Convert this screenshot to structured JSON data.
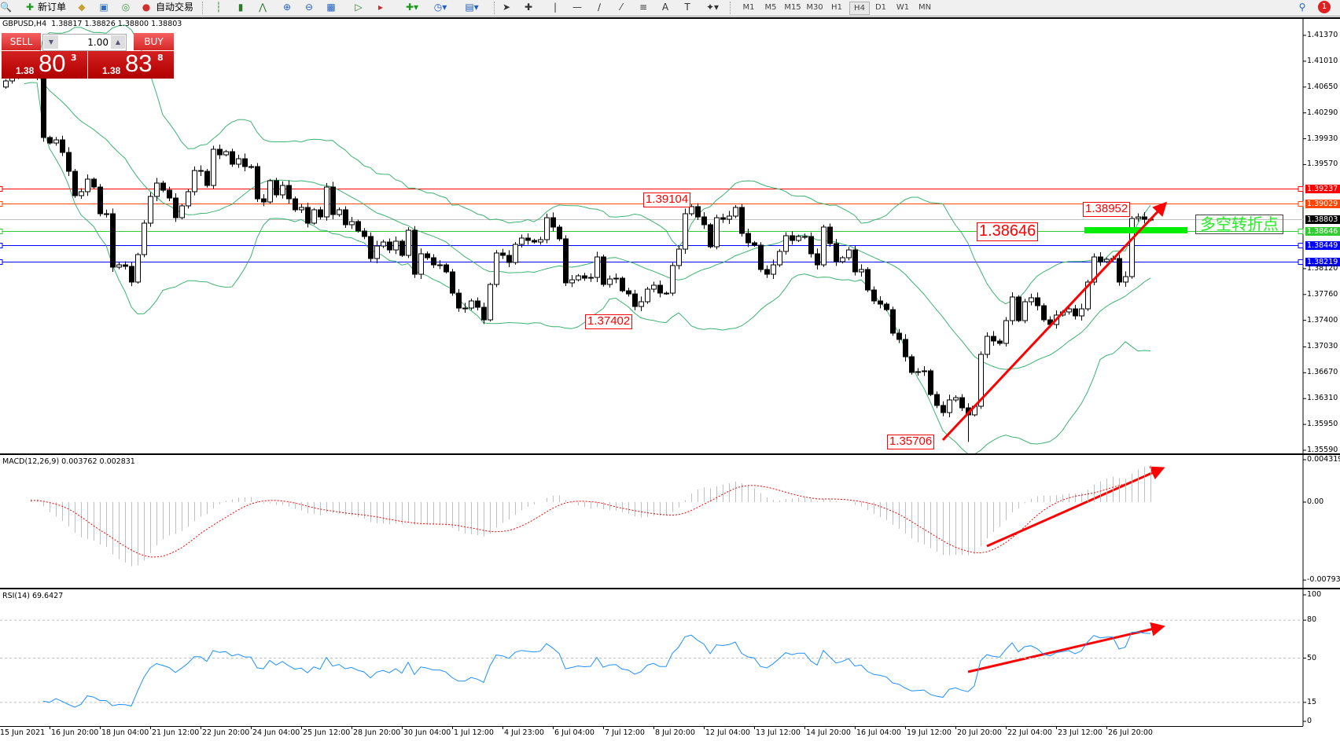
{
  "toolbar": {
    "new_order_label": "新订单",
    "auto_trading_label": "自动交易",
    "timeframes": [
      "M1",
      "M5",
      "M15",
      "M30",
      "H1",
      "H4",
      "D1",
      "W1",
      "MN"
    ],
    "active_timeframe": "H4",
    "notification_count": "1"
  },
  "chart_header": {
    "title": "GBPUSD,H4  1.38817 1.38826 1.38800 1.38803"
  },
  "trade_panel": {
    "sell_label": "SELL",
    "buy_label": "BUY",
    "lot_size": "1.00",
    "sell_price": {
      "prefix": "1.38",
      "big": "80",
      "sup": "3"
    },
    "buy_price": {
      "prefix": "1.38",
      "big": "83",
      "sup": "8"
    }
  },
  "indicators": {
    "macd_label": "MACD(12,26,9) 0.003762 0.002831",
    "rsi_label": "RSI(14) 69.6427"
  },
  "colors": {
    "bollinger": "#3cb371",
    "macd_histogram": "#c0c0c0",
    "macd_signal": "#ff0000",
    "rsi_line": "#1e90ff",
    "annotation": "#ff0000",
    "turning_point": "#00ee00"
  },
  "chart_data": {
    "type": "candlestick",
    "symbol": "GBPUSD",
    "timeframe": "H4",
    "ylim": [
      1.3559,
      1.4137
    ],
    "y_ticks": [
      "1.41370",
      "1.41010",
      "1.40650",
      "1.40290",
      "1.39930",
      "1.39570",
      "1.38120",
      "1.37760",
      "1.37400",
      "1.37030",
      "1.36670",
      "1.36310",
      "1.35950",
      "1.35590"
    ],
    "x_tick_labels": [
      "15 Jun 2021",
      "16 Jun 20:00",
      "18 Jun 04:00",
      "21 Jun 12:00",
      "22 Jun 20:00",
      "24 Jun 04:00",
      "25 Jun 12:00",
      "28 Jun 20:00",
      "30 Jun 04:00",
      "1 Jul 12:00",
      "4 Jul 23:00",
      "6 Jul 04:00",
      "7 Jul 12:00",
      "8 Jul 20:00",
      "12 Jul 04:00",
      "13 Jul 12:00",
      "14 Jul 20:00",
      "16 Jul 04:00",
      "19 Jul 12:00",
      "20 Jul 20:00",
      "22 Jul 04:00",
      "23 Jul 12:00",
      "26 Jul 20:00"
    ],
    "bars_per_x_tick": 8,
    "first_open": 1.4065,
    "closes": [
      1.40735,
      1.40812,
      1.40877,
      1.40921,
      1.40855,
      1.4079,
      1.39947,
      1.3987,
      1.39914,
      1.39739,
      1.39476,
      1.39137,
      1.39192,
      1.39367,
      1.39257,
      1.38885,
      1.38885,
      1.38141,
      1.38173,
      1.38152,
      1.37933,
      1.38316,
      1.38754,
      1.39126,
      1.39312,
      1.39213,
      1.39104,
      1.3883,
      1.38995,
      1.39192,
      1.39487,
      1.39476,
      1.39279,
      1.39783,
      1.39706,
      1.3975,
      1.39575,
      1.39651,
      1.39542,
      1.39542,
      1.39093,
      1.39049,
      1.39345,
      1.39148,
      1.39279,
      1.39093,
      1.3894,
      1.38973,
      1.38754,
      1.3894,
      1.38841,
      1.39257,
      1.38874,
      1.3894,
      1.38732,
      1.38776,
      1.38644,
      1.38568,
      1.38261,
      1.38436,
      1.38491,
      1.38381,
      1.38502,
      1.38305,
      1.38655,
      1.38042,
      1.38327,
      1.38272,
      1.38173,
      1.38173,
      1.38075,
      1.37779,
      1.37571,
      1.37571,
      1.3767,
      1.37582,
      1.37407,
      1.379,
      1.38338,
      1.38305,
      1.38206,
      1.38458,
      1.38546,
      1.38513,
      1.38491,
      1.38524,
      1.3883,
      1.38699,
      1.38535,
      1.37922,
      1.37965,
      1.3802,
      1.37987,
      1.37998,
      1.38283,
      1.379,
      1.37976,
      1.37987,
      1.37812,
      1.37768,
      1.37593,
      1.37659,
      1.37834,
      1.37889,
      1.37779,
      1.37779,
      1.38163,
      1.38392,
      1.38885,
      1.38984,
      1.38841,
      1.38732,
      1.38425,
      1.3883,
      1.38808,
      1.38852,
      1.38973,
      1.38611,
      1.3848,
      1.38447,
      1.38108,
      1.38042,
      1.38173,
      1.3836,
      1.38579,
      1.38513,
      1.38568,
      1.38568,
      1.38327,
      1.38173,
      1.38699,
      1.38469,
      1.38217,
      1.38272,
      1.38381,
      1.38075,
      1.38108,
      1.37823,
      1.3767,
      1.37626,
      1.37549,
      1.37221,
      1.37134,
      1.36893,
      1.36674,
      1.36685,
      1.36696,
      1.36367,
      1.36214,
      1.36115,
      1.36291,
      1.36323,
      1.36181,
      1.36083,
      1.36203,
      1.36926,
      1.37177,
      1.37112,
      1.37079,
      1.37396,
      1.37725,
      1.37396,
      1.37659,
      1.37714,
      1.37604,
      1.37407,
      1.37342,
      1.37473,
      1.37517,
      1.3756,
      1.37462,
      1.3756,
      1.37933,
      1.38283,
      1.38217,
      1.3825,
      1.38261,
      1.37933,
      1.38009,
      1.38819,
      1.38841,
      1.38808,
      1.38803
    ],
    "horizontal_lines": [
      {
        "price": "1.39237",
        "color": "#ff0000"
      },
      {
        "price": "1.39029",
        "color": "#ff4500"
      },
      {
        "price": "1.38803",
        "color": "#000000",
        "line_color": "#c0c0c0"
      },
      {
        "price": "1.38646",
        "color": "#32cd32"
      },
      {
        "price": "1.38449",
        "color": "#0000ff"
      },
      {
        "price": "1.38219",
        "color": "#0000ff"
      }
    ],
    "price_labels": [
      {
        "text": "1.39104",
        "bar": 101
      },
      {
        "text": "1.37402",
        "bar": 92
      },
      {
        "text": "1.35706",
        "bar": 153
      },
      {
        "text": "1.38952",
        "bar": 179
      },
      {
        "text": "1.38646",
        "bar": 131
      }
    ],
    "turning_point_label": "多空转折点",
    "macd": {
      "params": [
        12,
        26,
        9
      ],
      "ylim": [
        -0.007931,
        0.004319
      ],
      "ticks": [
        "0.004319",
        "0.00",
        "-0.007931"
      ]
    },
    "rsi": {
      "period": 14,
      "ylim": [
        0,
        100
      ],
      "ticks": [
        "100",
        "80",
        "50",
        "15",
        "0"
      ],
      "levels": [
        80,
        50,
        15
      ]
    }
  }
}
